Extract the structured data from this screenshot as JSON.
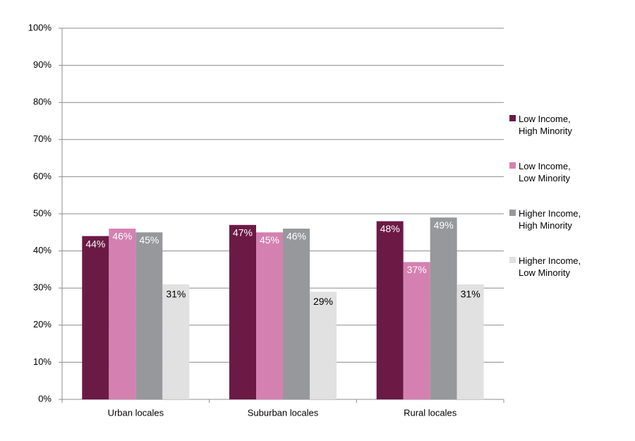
{
  "chart_data": {
    "type": "bar",
    "categories": [
      "Urban locales",
      "Suburban locales",
      "Rural locales"
    ],
    "series": [
      {
        "name": "Low Income, High Minority",
        "color": "#6b1a45",
        "values": [
          44,
          47,
          48
        ],
        "value_labels": [
          "44%",
          "47%",
          "48%"
        ]
      },
      {
        "name": "Low Income, Low Minority",
        "color": "#d481b1",
        "values": [
          46,
          45,
          37
        ],
        "value_labels": [
          "46%",
          "45%",
          "37%"
        ]
      },
      {
        "name": "Higher Income, High Minority",
        "color": "#97989c",
        "values": [
          45,
          46,
          49
        ],
        "value_labels": [
          "45%",
          "46%",
          "49%"
        ]
      },
      {
        "name": "Higher Income, Low Minority",
        "color": "#e1e1e1",
        "values": [
          31,
          29,
          31
        ],
        "value_labels": [
          "31%",
          "29%",
          "31%"
        ]
      }
    ],
    "ylim": [
      0,
      100
    ],
    "yticks": [
      {
        "value": 0,
        "label": "0%"
      },
      {
        "value": 10,
        "label": "10%"
      },
      {
        "value": 20,
        "label": "20%"
      },
      {
        "value": 30,
        "label": "30%"
      },
      {
        "value": 40,
        "label": "40%"
      },
      {
        "value": 50,
        "label": "50%"
      },
      {
        "value": 60,
        "label": "60%"
      },
      {
        "value": 70,
        "label": "70%"
      },
      {
        "value": 80,
        "label": "80%"
      },
      {
        "value": 90,
        "label": "90%"
      },
      {
        "value": 100,
        "label": "100%"
      }
    ],
    "grid": true,
    "legend": "right"
  }
}
